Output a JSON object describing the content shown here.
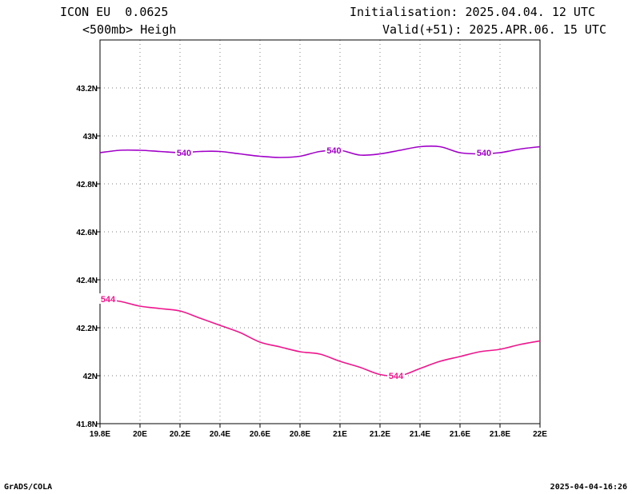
{
  "header": {
    "model": "ICON EU  0.0625",
    "field": "<500mb> Heigh",
    "init": "Initialisation: 2025.04.04. 12 UTC",
    "valid": "Valid(+51): 2025.APR.06. 15 UTC"
  },
  "footer": {
    "left": "GrADS/COLA",
    "right": "2025-04-04-16:26"
  },
  "chart_data": {
    "type": "line",
    "xlim": [
      19.8,
      22.0
    ],
    "ylim": [
      41.8,
      43.4
    ],
    "x_ticks": [
      19.8,
      20.0,
      20.2,
      20.4,
      20.6,
      20.8,
      21.0,
      21.2,
      21.4,
      21.6,
      21.8,
      22.0
    ],
    "x_tick_labels": [
      "19.8E",
      "20E",
      "20.2E",
      "20.4E",
      "20.6E",
      "20.8E",
      "21E",
      "21.2E",
      "21.4E",
      "21.6E",
      "21.8E",
      "22E"
    ],
    "y_ticks": [
      41.8,
      42.0,
      42.2,
      42.4,
      42.6,
      42.8,
      43.0,
      43.2
    ],
    "y_tick_labels": [
      "41.8N",
      "42N",
      "42.2N",
      "42.4N",
      "42.6N",
      "42.8N",
      "43N",
      "43.2N"
    ],
    "grid": true,
    "series": [
      {
        "name": "540",
        "color": "#a000c8",
        "x": [
          19.8,
          19.9,
          20.0,
          20.1,
          20.2,
          20.3,
          20.4,
          20.5,
          20.6,
          20.7,
          20.8,
          20.9,
          21.0,
          21.1,
          21.2,
          21.3,
          21.4,
          21.5,
          21.6,
          21.7,
          21.8,
          21.9,
          22.0
        ],
        "y": [
          42.93,
          42.94,
          42.94,
          42.935,
          42.93,
          42.935,
          42.935,
          42.925,
          42.915,
          42.91,
          42.915,
          42.935,
          42.94,
          42.92,
          42.925,
          42.94,
          42.955,
          42.955,
          42.93,
          42.925,
          42.93,
          42.945,
          42.955
        ],
        "labels": [
          {
            "text": "540",
            "x": 20.22,
            "y": 42.93
          },
          {
            "text": "540",
            "x": 20.97,
            "y": 42.94
          },
          {
            "text": "540",
            "x": 21.72,
            "y": 42.93
          }
        ]
      },
      {
        "name": "544",
        "color": "#f0148c",
        "x": [
          19.8,
          19.9,
          20.0,
          20.1,
          20.2,
          20.3,
          20.4,
          20.5,
          20.6,
          20.7,
          20.8,
          20.9,
          21.0,
          21.1,
          21.2,
          21.3,
          21.4,
          21.5,
          21.6,
          21.7,
          21.8,
          21.9,
          22.0
        ],
        "y": [
          42.32,
          42.31,
          42.29,
          42.28,
          42.27,
          42.24,
          42.21,
          42.18,
          42.14,
          42.12,
          42.1,
          42.09,
          42.06,
          42.035,
          42.005,
          42.0,
          42.03,
          42.06,
          42.08,
          42.1,
          42.11,
          42.13,
          42.145
        ],
        "labels": [
          {
            "text": "544",
            "x": 19.84,
            "y": 42.32
          },
          {
            "text": "544",
            "x": 21.28,
            "y": 42.0
          }
        ]
      }
    ]
  }
}
